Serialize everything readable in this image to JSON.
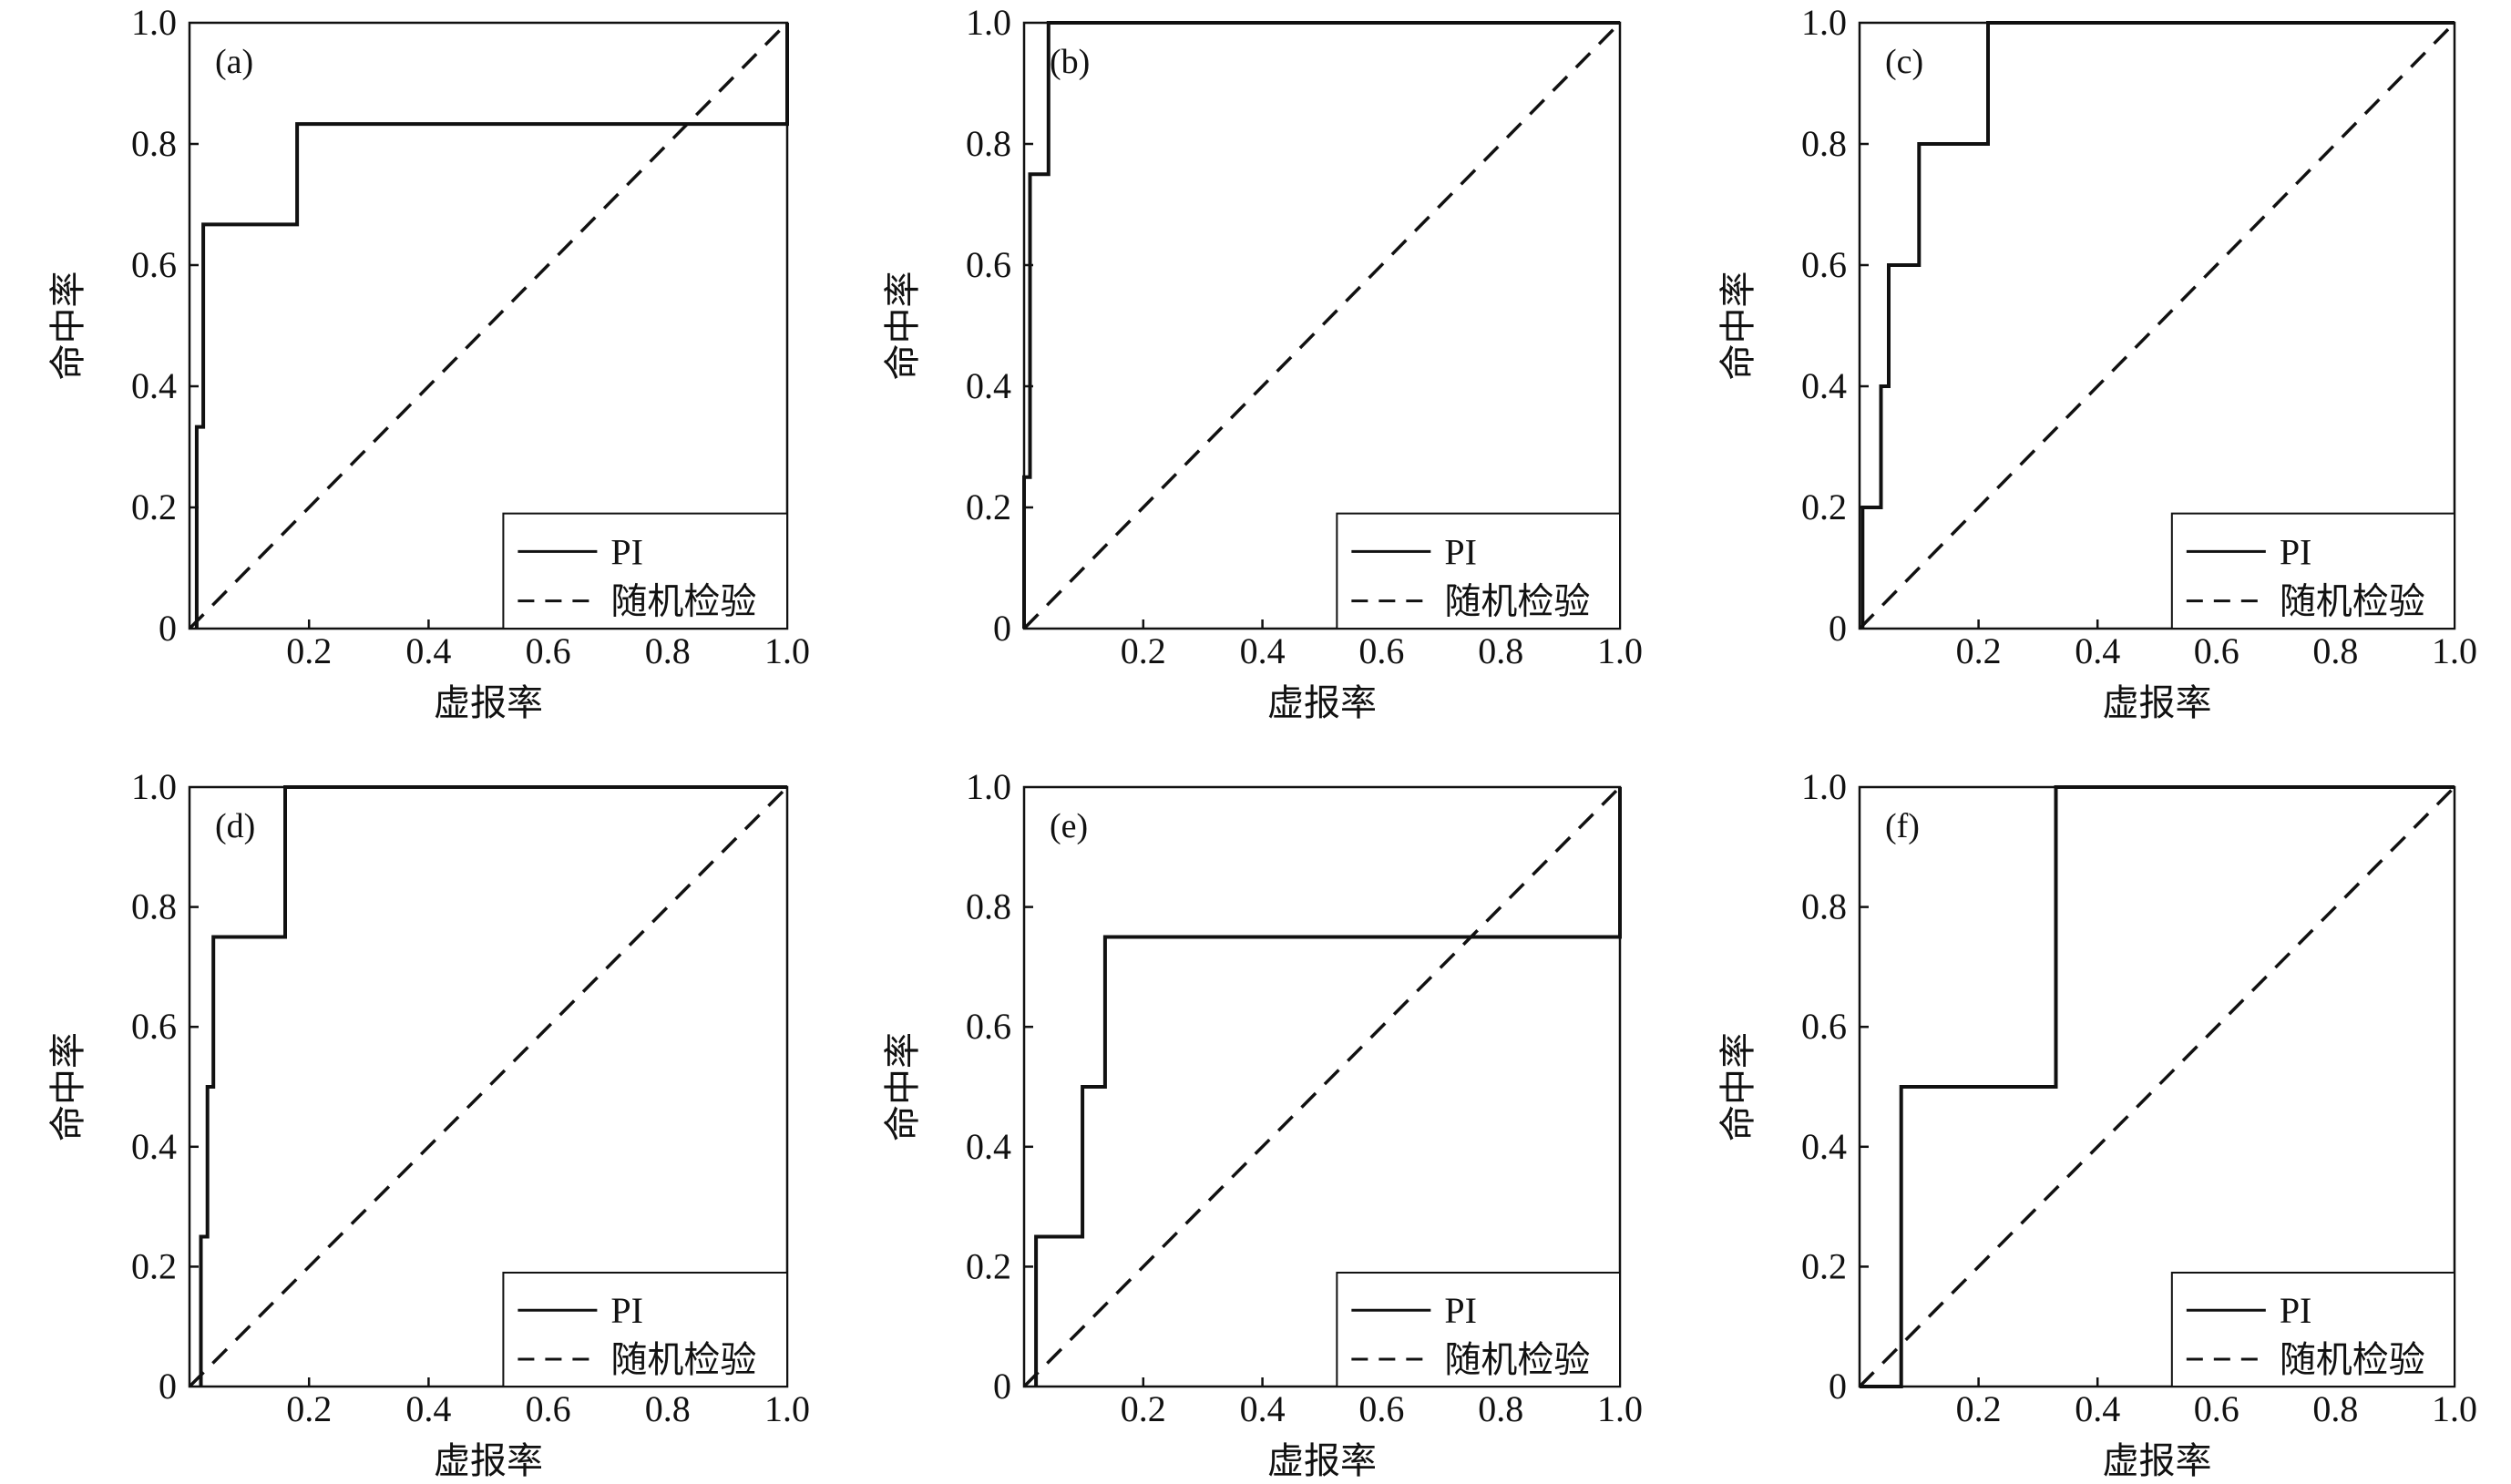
{
  "chart_data": [
    {
      "type": "line",
      "panel_label": "(a)",
      "xlabel": "虚报率",
      "ylabel": "命中率",
      "xlim": [
        0,
        1
      ],
      "ylim": [
        0,
        1
      ],
      "x_ticks": [
        "0.2",
        "0.4",
        "0.6",
        "0.8",
        "1.0"
      ],
      "y_ticks": [
        "0",
        "0.2",
        "0.4",
        "0.6",
        "0.8",
        "1.0"
      ],
      "legend": {
        "position": "bottom-right",
        "entries": [
          "PI",
          "随机检验"
        ]
      },
      "series": [
        {
          "name": "PI",
          "style": "solid",
          "points": [
            [
              0.012,
              0
            ],
            [
              0.012,
              0.333
            ],
            [
              0.023,
              0.333
            ],
            [
              0.023,
              0.667
            ],
            [
              0.18,
              0.667
            ],
            [
              0.18,
              0.833
            ],
            [
              1,
              0.833
            ],
            [
              1,
              1
            ]
          ]
        },
        {
          "name": "随机检验",
          "style": "dashed",
          "points": [
            [
              0,
              0
            ],
            [
              1,
              1
            ]
          ]
        }
      ]
    },
    {
      "type": "line",
      "panel_label": "(b)",
      "xlabel": "虚报率",
      "ylabel": "命中率",
      "xlim": [
        0,
        1
      ],
      "ylim": [
        0,
        1
      ],
      "x_ticks": [
        "0.2",
        "0.4",
        "0.6",
        "0.8",
        "1.0"
      ],
      "y_ticks": [
        "0",
        "0.2",
        "0.4",
        "0.6",
        "0.8",
        "1.0"
      ],
      "legend": {
        "position": "bottom-right",
        "entries": [
          "PI",
          "随机检验"
        ]
      },
      "series": [
        {
          "name": "PI",
          "style": "solid",
          "points": [
            [
              0,
              0
            ],
            [
              0,
              0.25
            ],
            [
              0.01,
              0.25
            ],
            [
              0.01,
              0.75
            ],
            [
              0.041,
              0.75
            ],
            [
              0.041,
              1
            ],
            [
              1,
              1
            ]
          ]
        },
        {
          "name": "随机检验",
          "style": "dashed",
          "points": [
            [
              0,
              0
            ],
            [
              1,
              1
            ]
          ]
        }
      ]
    },
    {
      "type": "line",
      "panel_label": "(c)",
      "xlabel": "虚报率",
      "ylabel": "命中率",
      "xlim": [
        0,
        1
      ],
      "ylim": [
        0,
        1
      ],
      "x_ticks": [
        "0.2",
        "0.4",
        "0.6",
        "0.8",
        "1.0"
      ],
      "y_ticks": [
        "0",
        "0.2",
        "0.4",
        "0.6",
        "0.8",
        "1.0"
      ],
      "legend": {
        "position": "bottom-right",
        "entries": [
          "PI",
          "随机检验"
        ]
      },
      "series": [
        {
          "name": "PI",
          "style": "solid",
          "points": [
            [
              0.005,
              0
            ],
            [
              0.005,
              0.2
            ],
            [
              0.036,
              0.2
            ],
            [
              0.036,
              0.4
            ],
            [
              0.049,
              0.4
            ],
            [
              0.049,
              0.6
            ],
            [
              0.1,
              0.6
            ],
            [
              0.1,
              0.8
            ],
            [
              0.216,
              0.8
            ],
            [
              0.216,
              1
            ],
            [
              1,
              1
            ]
          ]
        },
        {
          "name": "随机检验",
          "style": "dashed",
          "points": [
            [
              0,
              0
            ],
            [
              1,
              1
            ]
          ]
        }
      ]
    },
    {
      "type": "line",
      "panel_label": "(d)",
      "xlabel": "虚报率",
      "ylabel": "命中率",
      "xlim": [
        0,
        1
      ],
      "ylim": [
        0,
        1
      ],
      "x_ticks": [
        "0.2",
        "0.4",
        "0.6",
        "0.8",
        "1.0"
      ],
      "y_ticks": [
        "0",
        "0.2",
        "0.4",
        "0.6",
        "0.8",
        "1.0"
      ],
      "legend": {
        "position": "bottom-right",
        "entries": [
          "PI",
          "随机检验"
        ]
      },
      "series": [
        {
          "name": "PI",
          "style": "solid",
          "points": [
            [
              0.019,
              0
            ],
            [
              0.019,
              0.25
            ],
            [
              0.03,
              0.25
            ],
            [
              0.03,
              0.5
            ],
            [
              0.04,
              0.5
            ],
            [
              0.04,
              0.75
            ],
            [
              0.16,
              0.75
            ],
            [
              0.16,
              1
            ],
            [
              1,
              1
            ]
          ]
        },
        {
          "name": "随机检验",
          "style": "dashed",
          "points": [
            [
              0,
              0
            ],
            [
              1,
              1
            ]
          ]
        }
      ]
    },
    {
      "type": "line",
      "panel_label": "(e)",
      "xlabel": "虚报率",
      "ylabel": "命中率",
      "xlim": [
        0,
        1
      ],
      "ylim": [
        0,
        1
      ],
      "x_ticks": [
        "0.2",
        "0.4",
        "0.6",
        "0.8",
        "1.0"
      ],
      "y_ticks": [
        "0",
        "0.2",
        "0.4",
        "0.6",
        "0.8",
        "1.0"
      ],
      "legend": {
        "position": "bottom-right",
        "entries": [
          "PI",
          "随机检验"
        ]
      },
      "series": [
        {
          "name": "PI",
          "style": "solid",
          "points": [
            [
              0.02,
              0
            ],
            [
              0.02,
              0.25
            ],
            [
              0.098,
              0.25
            ],
            [
              0.098,
              0.5
            ],
            [
              0.136,
              0.5
            ],
            [
              0.136,
              0.75
            ],
            [
              1,
              0.75
            ],
            [
              1,
              1
            ]
          ]
        },
        {
          "name": "随机检验",
          "style": "dashed",
          "points": [
            [
              0,
              0
            ],
            [
              1,
              1
            ]
          ]
        }
      ]
    },
    {
      "type": "line",
      "panel_label": "(f)",
      "xlabel": "虚报率",
      "ylabel": "命中率",
      "xlim": [
        0,
        1
      ],
      "ylim": [
        0,
        1
      ],
      "x_ticks": [
        "0.2",
        "0.4",
        "0.6",
        "0.8",
        "1.0"
      ],
      "y_ticks": [
        "0",
        "0.2",
        "0.4",
        "0.6",
        "0.8",
        "1.0"
      ],
      "legend": {
        "position": "bottom-right",
        "entries": [
          "PI",
          "随机检验"
        ]
      },
      "series": [
        {
          "name": "PI",
          "style": "solid",
          "points": [
            [
              0,
              0
            ],
            [
              0.07,
              0
            ],
            [
              0.07,
              0.5
            ],
            [
              0.33,
              0.5
            ],
            [
              0.33,
              1
            ],
            [
              1,
              1
            ]
          ]
        },
        {
          "name": "随机检验",
          "style": "dashed",
          "points": [
            [
              0,
              0
            ],
            [
              1,
              1
            ]
          ]
        }
      ]
    }
  ]
}
